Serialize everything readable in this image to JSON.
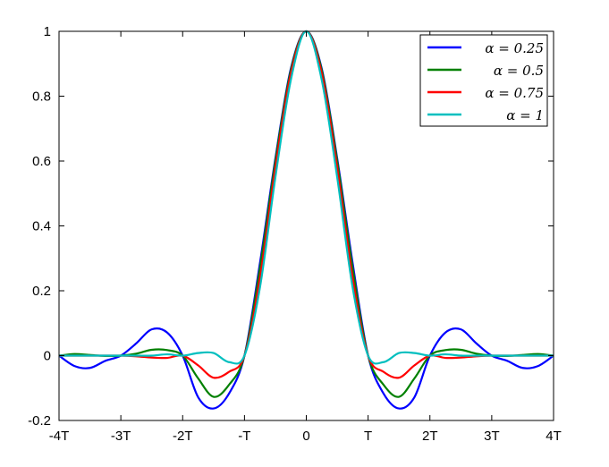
{
  "chart_data": {
    "type": "line",
    "title": "",
    "xlabel": "",
    "ylabel": "",
    "xlim": [
      -4,
      4
    ],
    "ylim": [
      -0.2,
      1
    ],
    "x_ticks": [
      -4,
      -3,
      -2,
      -1,
      0,
      1,
      2,
      3,
      4
    ],
    "x_tick_labels": [
      "-4T",
      "-3T",
      "-2T",
      "-T",
      "0",
      "T",
      "2T",
      "3T",
      "4T"
    ],
    "y_ticks": [
      -0.2,
      0,
      0.2,
      0.4,
      0.6,
      0.8,
      1
    ],
    "y_tick_labels": [
      "-0.2",
      "0",
      "0.2",
      "0.4",
      "0.6",
      "0.8",
      "1"
    ],
    "x_unit": "T",
    "grid": false,
    "legend_position": "top-right",
    "series": [
      {
        "name": "α = 0.25",
        "color": "#0000ff",
        "x": [
          -4,
          -3.75,
          -3.5,
          -3.25,
          -3,
          -2.75,
          -2.5,
          -2.25,
          -2,
          -1.75,
          -1.5,
          -1.25,
          -1,
          -0.75,
          -0.5,
          -0.25,
          0,
          0.25,
          0.5,
          0.75,
          1,
          1.25,
          1.5,
          1.75,
          2,
          2.25,
          2.5,
          2.75,
          3,
          3.25,
          3.5,
          3.75,
          4
        ],
        "y": [
          0,
          -0.032,
          -0.038,
          -0.016,
          0,
          0.038,
          0.081,
          0.071,
          0,
          -0.128,
          -0.163,
          -0.117,
          0,
          0.285,
          0.608,
          0.885,
          1,
          0.885,
          0.608,
          0.285,
          0,
          -0.117,
          -0.163,
          -0.128,
          0,
          0.071,
          0.081,
          0.038,
          0,
          -0.016,
          -0.038,
          -0.032,
          0
        ]
      },
      {
        "name": "α = 0.5",
        "color": "#008000",
        "x": [
          -4,
          -3.75,
          -3.5,
          -3.25,
          -3,
          -2.75,
          -2.5,
          -2.25,
          -2,
          -1.75,
          -1.5,
          -1.25,
          -1,
          -0.75,
          -0.5,
          -0.25,
          0,
          0.25,
          0.5,
          0.75,
          1,
          1.25,
          1.5,
          1.75,
          2,
          2.25,
          2.5,
          2.75,
          3,
          3.25,
          3.5,
          3.75,
          4
        ],
        "y": [
          0,
          0.005,
          0.002,
          -0.001,
          0,
          0.006,
          0.018,
          0.017,
          0,
          -0.07,
          -0.127,
          -0.09,
          0,
          0.27,
          0.6,
          0.88,
          1,
          0.88,
          0.6,
          0.27,
          0,
          -0.09,
          -0.127,
          -0.07,
          0,
          0.017,
          0.018,
          0.006,
          0,
          -0.001,
          0.002,
          0.005,
          0
        ]
      },
      {
        "name": "α = 0.75",
        "color": "#ff0000",
        "x": [
          -4,
          -3.75,
          -3.5,
          -3.25,
          -3,
          -2.75,
          -2.5,
          -2.25,
          -2,
          -1.75,
          -1.5,
          -1.25,
          -1,
          -0.75,
          -0.5,
          -0.25,
          0,
          0.25,
          0.5,
          0.75,
          1,
          1.25,
          1.5,
          1.75,
          2,
          2.25,
          2.5,
          2.75,
          3,
          3.25,
          3.5,
          3.75,
          4
        ],
        "y": [
          0,
          0,
          0,
          0,
          0,
          -0.002,
          -0.006,
          -0.007,
          0,
          -0.03,
          -0.068,
          -0.05,
          0,
          0.24,
          0.58,
          0.87,
          1,
          0.87,
          0.58,
          0.24,
          0,
          -0.05,
          -0.068,
          -0.03,
          0,
          -0.007,
          -0.006,
          -0.002,
          0,
          0,
          0,
          0,
          0
        ]
      },
      {
        "name": "α = 1",
        "color": "#00bfbf",
        "x": [
          -4,
          -3.75,
          -3.5,
          -3.25,
          -3,
          -2.75,
          -2.5,
          -2.25,
          -2,
          -1.75,
          -1.5,
          -1.25,
          -1,
          -0.75,
          -0.5,
          -0.25,
          0,
          0.25,
          0.5,
          0.75,
          1,
          1.25,
          1.5,
          1.75,
          2,
          2.25,
          2.5,
          2.75,
          3,
          3.25,
          3.5,
          3.75,
          4
        ],
        "y": [
          0,
          0,
          0,
          0,
          0,
          0,
          0,
          0.004,
          0,
          0.008,
          0.008,
          -0.02,
          0,
          0.21,
          0.55,
          0.85,
          1,
          0.85,
          0.55,
          0.21,
          0,
          -0.02,
          0.008,
          0.008,
          0,
          0.004,
          0,
          0,
          0,
          0,
          0,
          0,
          0
        ]
      }
    ]
  }
}
